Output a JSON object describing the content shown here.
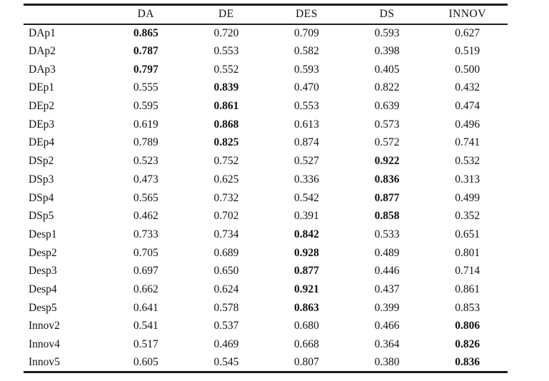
{
  "table": {
    "columns": [
      "",
      "DA",
      "DE",
      "DES",
      "DS",
      "INNOV"
    ],
    "rows": [
      {
        "label": "DAp1",
        "values": [
          "0.865",
          "0.720",
          "0.709",
          "0.593",
          "0.627"
        ],
        "bold": 0
      },
      {
        "label": "DAp2",
        "values": [
          "0.787",
          "0.553",
          "0.582",
          "0.398",
          "0.519"
        ],
        "bold": 0
      },
      {
        "label": "DAp3",
        "values": [
          "0.797",
          "0.552",
          "0.593",
          "0.405",
          "0.500"
        ],
        "bold": 0
      },
      {
        "label": "DEp1",
        "values": [
          "0.555",
          "0.839",
          "0.470",
          "0.822",
          "0.432"
        ],
        "bold": 1
      },
      {
        "label": "DEp2",
        "values": [
          "0.595",
          "0.861",
          "0.553",
          "0.639",
          "0.474"
        ],
        "bold": 1
      },
      {
        "label": "DEp3",
        "values": [
          "0.619",
          "0.868",
          "0.613",
          "0.573",
          "0.496"
        ],
        "bold": 1
      },
      {
        "label": "DEp4",
        "values": [
          "0.789",
          "0.825",
          "0.874",
          "0.572",
          "0.741"
        ],
        "bold": 1
      },
      {
        "label": "DSp2",
        "values": [
          "0.523",
          "0.752",
          "0.527",
          "0.922",
          "0.532"
        ],
        "bold": 3
      },
      {
        "label": "DSp3",
        "values": [
          "0.473",
          "0.625",
          "0.336",
          "0.836",
          "0.313"
        ],
        "bold": 3
      },
      {
        "label": "DSp4",
        "values": [
          "0.565",
          "0.732",
          "0.542",
          "0.877",
          "0.499"
        ],
        "bold": 3
      },
      {
        "label": "DSp5",
        "values": [
          "0.462",
          "0.702",
          "0.391",
          "0.858",
          "0.352"
        ],
        "bold": 3
      },
      {
        "label": "Desp1",
        "values": [
          "0.733",
          "0.734",
          "0.842",
          "0.533",
          "0.651"
        ],
        "bold": 2
      },
      {
        "label": "Desp2",
        "values": [
          "0.705",
          "0.689",
          "0.928",
          "0.489",
          "0.801"
        ],
        "bold": 2
      },
      {
        "label": "Desp3",
        "values": [
          "0.697",
          "0.650",
          "0.877",
          "0.446",
          "0.714"
        ],
        "bold": 2
      },
      {
        "label": "Desp4",
        "values": [
          "0.662",
          "0.624",
          "0.921",
          "0.437",
          "0.861"
        ],
        "bold": 2
      },
      {
        "label": "Desp5",
        "values": [
          "0.641",
          "0.578",
          "0.863",
          "0.399",
          "0.853"
        ],
        "bold": 2
      },
      {
        "label": "Innov2",
        "values": [
          "0.541",
          "0.537",
          "0.680",
          "0.466",
          "0.806"
        ],
        "bold": 4
      },
      {
        "label": "Innov4",
        "values": [
          "0.517",
          "0.469",
          "0.668",
          "0.364",
          "0.826"
        ],
        "bold": 4
      },
      {
        "label": "Innov5",
        "values": [
          "0.605",
          "0.545",
          "0.807",
          "0.380",
          "0.836"
        ],
        "bold": 4
      }
    ]
  },
  "colors": {
    "background": "#ffffff",
    "text": "#111111",
    "rule": "#1c1c1c"
  }
}
